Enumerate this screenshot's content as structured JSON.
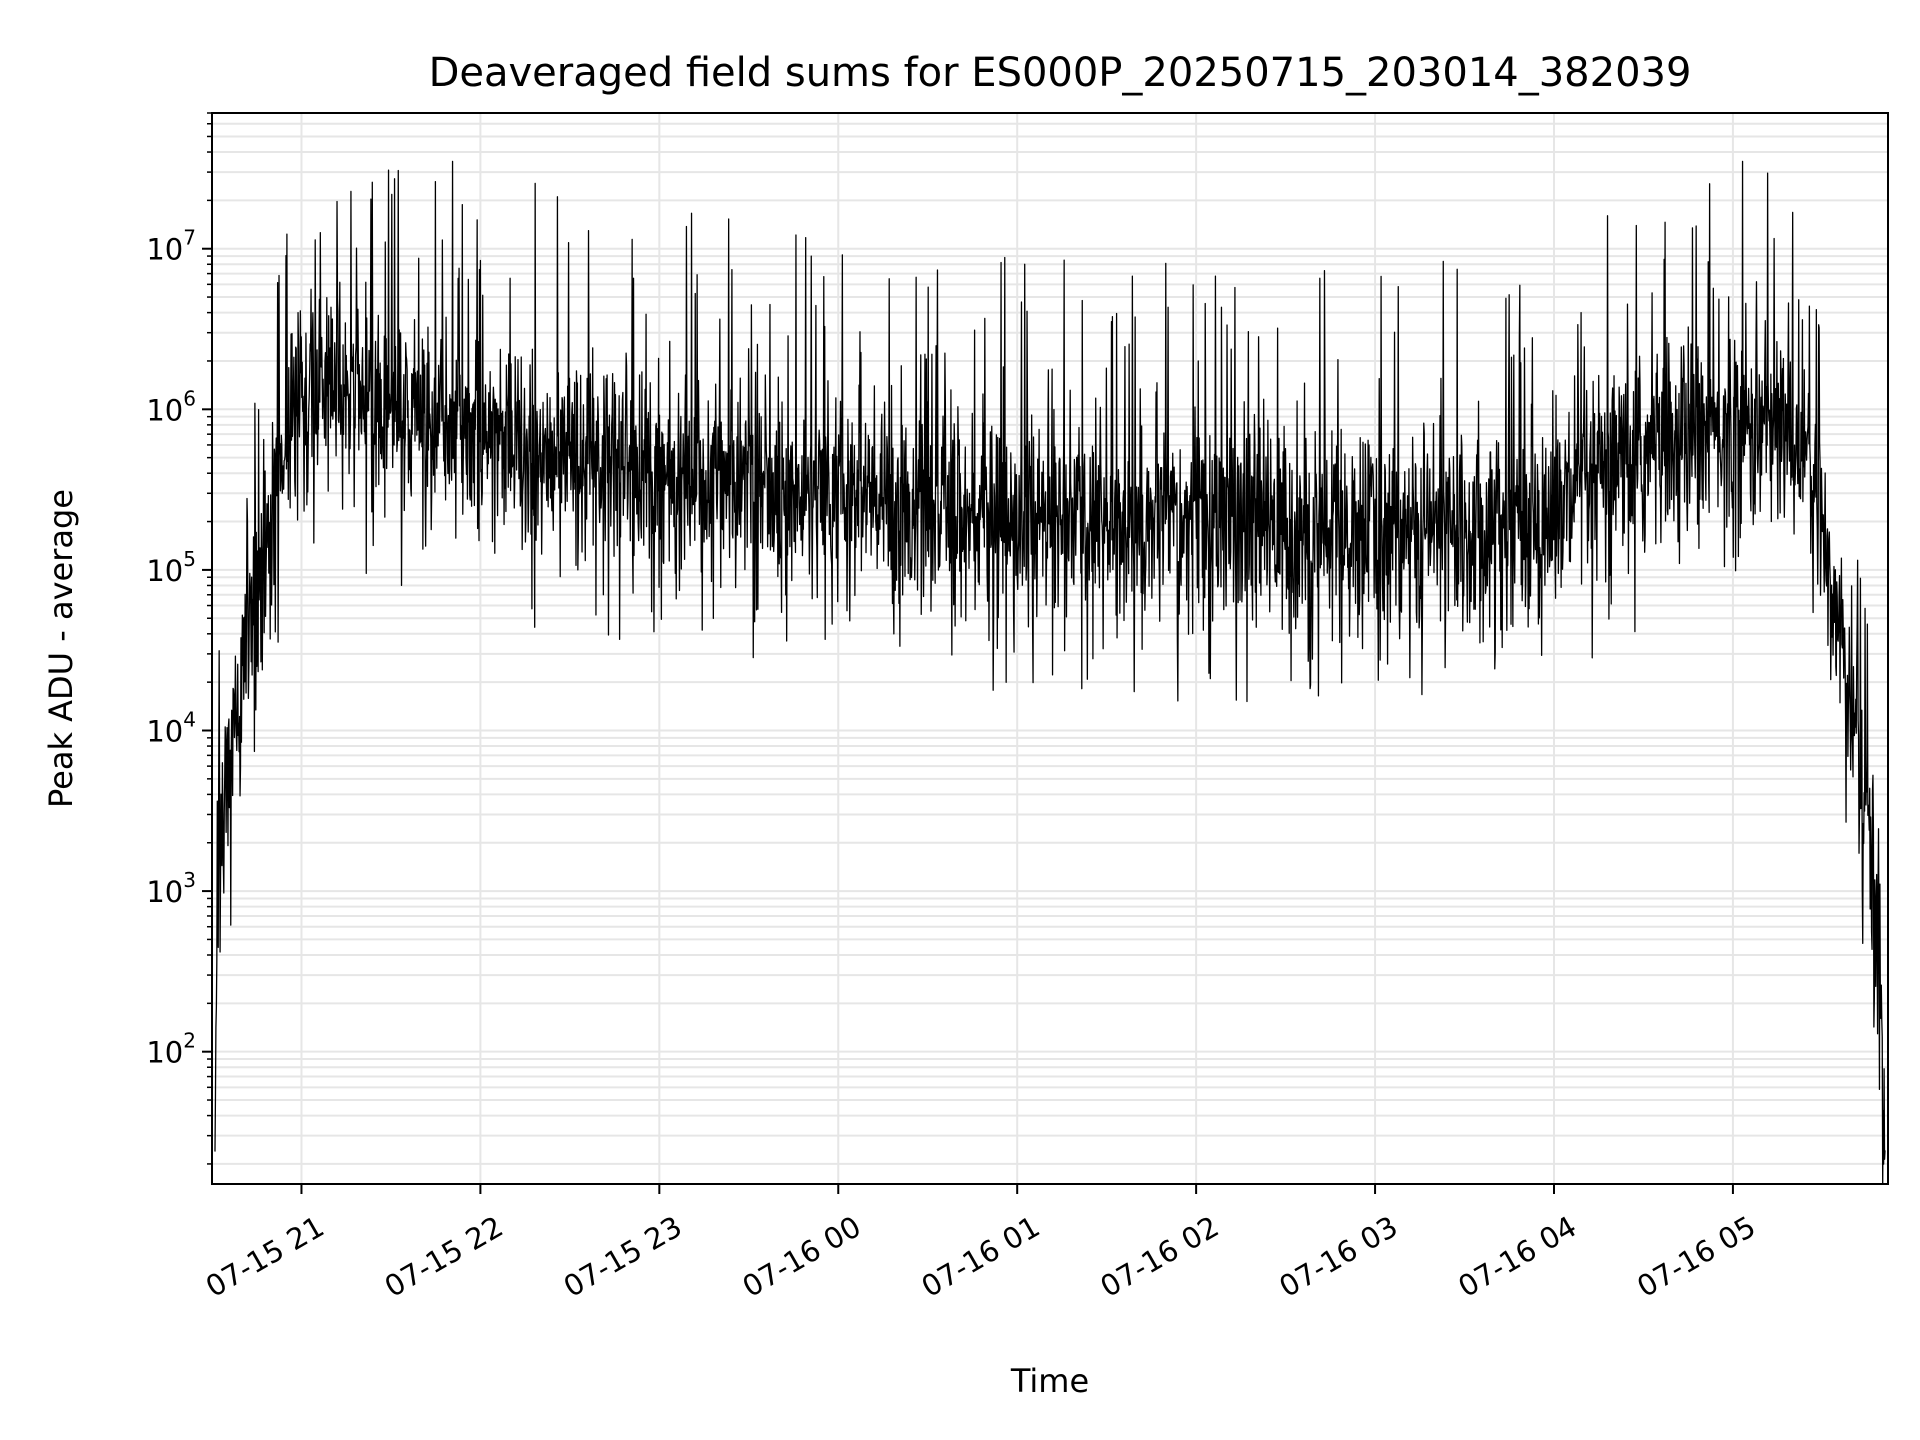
{
  "chart_data": {
    "type": "line",
    "title": "Deaveraged field sums for ES000P_20250715_203014_382039",
    "xlabel": "Time",
    "ylabel": "Peak ADU - average",
    "yscale": "log",
    "ylim": [
      15,
      70000000
    ],
    "xlim": [
      "2025-07-15 20:30",
      "2025-07-16 05:52"
    ],
    "grid": true,
    "line_color": "#000000",
    "grid_color": "#e6e6e6",
    "x_ticks": [
      {
        "label": "07-15 21",
        "t": "2025-07-15 21:00"
      },
      {
        "label": "07-15 22",
        "t": "2025-07-15 22:00"
      },
      {
        "label": "07-15 23",
        "t": "2025-07-15 23:00"
      },
      {
        "label": "07-16 00",
        "t": "2025-07-16 00:00"
      },
      {
        "label": "07-16 01",
        "t": "2025-07-16 01:00"
      },
      {
        "label": "07-16 02",
        "t": "2025-07-16 02:00"
      },
      {
        "label": "07-16 03",
        "t": "2025-07-16 03:00"
      },
      {
        "label": "07-16 04",
        "t": "2025-07-16 04:00"
      },
      {
        "label": "07-16 05",
        "t": "2025-07-16 05:00"
      }
    ],
    "y_ticks": [
      {
        "base": "10",
        "exp": "2",
        "value": 100
      },
      {
        "base": "10",
        "exp": "3",
        "value": 1000
      },
      {
        "base": "10",
        "exp": "4",
        "value": 10000
      },
      {
        "base": "10",
        "exp": "5",
        "value": 100000
      },
      {
        "base": "10",
        "exp": "6",
        "value": 1000000
      },
      {
        "base": "10",
        "exp": "7",
        "value": 10000000
      }
    ],
    "series": [
      {
        "x": [
          "2025-07-15 20:31",
          "2025-07-15 20:32",
          "2025-07-15 20:33",
          "2025-07-15 20:35",
          "2025-07-15 20:37",
          "2025-07-15 20:40",
          "2025-07-15 20:43",
          "2025-07-15 20:46",
          "2025-07-15 20:50",
          "2025-07-15 20:54",
          "2025-07-15 20:57",
          "2025-07-15 21:00",
          "2025-07-15 21:10",
          "2025-07-15 21:20",
          "2025-07-15 21:30",
          "2025-07-15 21:45",
          "2025-07-15 22:00",
          "2025-07-15 22:15",
          "2025-07-15 22:30",
          "2025-07-15 22:45",
          "2025-07-15 23:00",
          "2025-07-15 23:30",
          "2025-07-16 00:00",
          "2025-07-16 00:30",
          "2025-07-16 01:00",
          "2025-07-16 01:30",
          "2025-07-16 02:00",
          "2025-07-16 02:30",
          "2025-07-16 03:00",
          "2025-07-16 03:30",
          "2025-07-16 04:00",
          "2025-07-16 04:20",
          "2025-07-16 04:40",
          "2025-07-16 05:00",
          "2025-07-16 05:15",
          "2025-07-16 05:25",
          "2025-07-16 05:30",
          "2025-07-16 05:35",
          "2025-07-16 05:40",
          "2025-07-16 05:45",
          "2025-07-16 05:48",
          "2025-07-16 05:50",
          "2025-07-16 05:51"
        ],
        "values": [
          30,
          1500,
          3000,
          5000,
          8000,
          20000,
          50000,
          100000,
          250000,
          600000,
          1200000,
          1500000,
          1300000,
          1100000,
          1000000,
          900000,
          750000,
          600000,
          500000,
          420000,
          380000,
          330000,
          280000,
          240000,
          210000,
          200000,
          190000,
          185000,
          180000,
          190000,
          220000,
          400000,
          650000,
          800000,
          750000,
          600000,
          150000,
          60000,
          12000,
          3000,
          1000,
          200,
          20
        ],
        "spike_max": 35000000,
        "spike_min": 15000
      }
    ]
  }
}
